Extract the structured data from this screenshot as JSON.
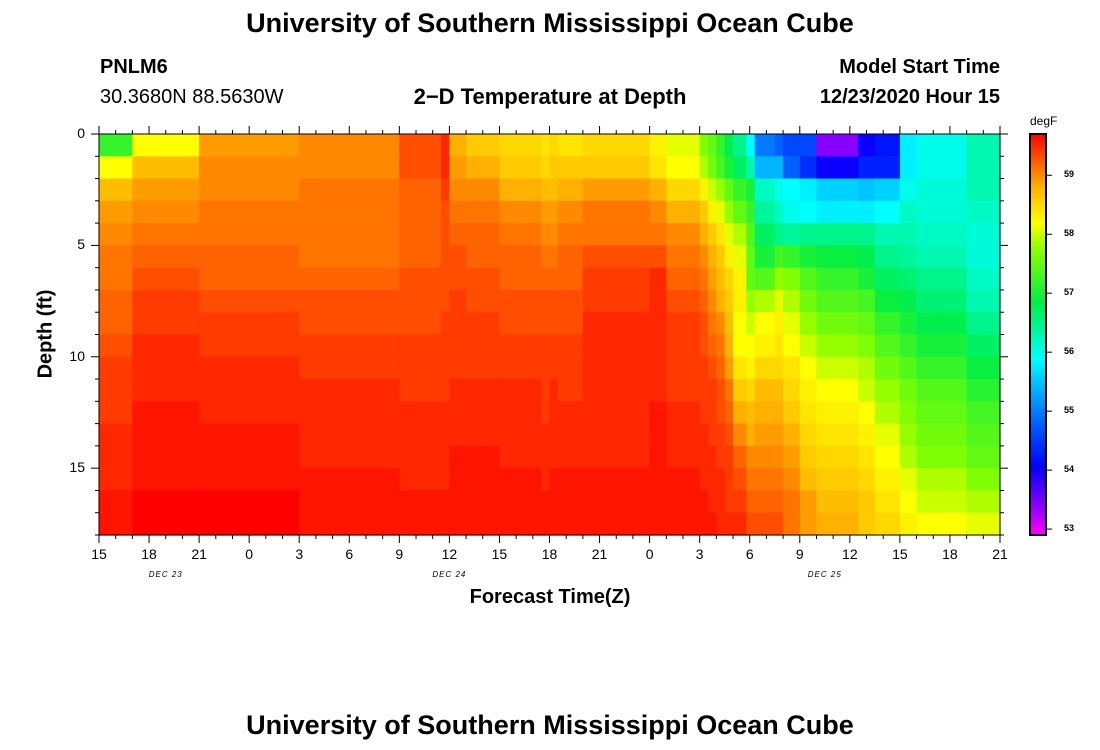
{
  "title_top": "University of Southern Mississippi Ocean Cube",
  "title_bottom": "University of Southern Mississippi Ocean Cube",
  "station": {
    "id": "PNLM6",
    "coords": "30.3680N 88.5630W"
  },
  "model": {
    "label": "Model Start Time",
    "time": "12/23/2020 Hour 15"
  },
  "chart_data": {
    "type": "heatmap",
    "title": "2−D Temperature at Depth",
    "xlabel": "Forecast Time(Z)",
    "ylabel": "Depth (ft)",
    "x_range_hours": [
      0,
      54
    ],
    "y_range_ft": [
      0,
      18
    ],
    "x_ticks": [
      {
        "hour": 0,
        "label": "15"
      },
      {
        "hour": 3,
        "label": "18"
      },
      {
        "hour": 6,
        "label": "21"
      },
      {
        "hour": 9,
        "label": "0"
      },
      {
        "hour": 12,
        "label": "3"
      },
      {
        "hour": 15,
        "label": "6"
      },
      {
        "hour": 18,
        "label": "9"
      },
      {
        "hour": 21,
        "label": "12"
      },
      {
        "hour": 24,
        "label": "15"
      },
      {
        "hour": 27,
        "label": "18"
      },
      {
        "hour": 30,
        "label": "21"
      },
      {
        "hour": 33,
        "label": "0"
      },
      {
        "hour": 36,
        "label": "3"
      },
      {
        "hour": 39,
        "label": "6"
      },
      {
        "hour": 42,
        "label": "9"
      },
      {
        "hour": 45,
        "label": "12"
      },
      {
        "hour": 48,
        "label": "15"
      },
      {
        "hour": 51,
        "label": "18"
      },
      {
        "hour": 54,
        "label": "21"
      }
    ],
    "y_ticks": [
      {
        "depth": 0,
        "label": "0"
      },
      {
        "depth": 5,
        "label": "5"
      },
      {
        "depth": 10,
        "label": "10"
      },
      {
        "depth": 15,
        "label": "15"
      }
    ],
    "date_labels": [
      {
        "hour": 4,
        "label": "DEC 23"
      },
      {
        "hour": 21,
        "label": "DEC 24"
      },
      {
        "hour": 43.5,
        "label": "DEC 25"
      }
    ],
    "colorbar": {
      "unit": "degF",
      "min": 52.9,
      "max": 59.7,
      "ticks": [
        "59",
        "58",
        "57",
        "56",
        "55",
        "54",
        "53"
      ],
      "tick_values": [
        59,
        58,
        57,
        56,
        55,
        54,
        53
      ]
    },
    "time_breakpoints_hours": [
      0,
      2,
      6,
      12,
      18,
      20.5,
      21,
      22,
      24,
      26.5,
      27,
      27.5,
      29,
      33,
      34,
      36,
      36.5,
      37,
      37.5,
      38,
      38.8,
      39.3,
      40.5,
      41,
      42,
      43,
      45.5,
      46.5,
      48,
      49,
      52,
      54
    ],
    "depth_breakpoints_ft": [
      0,
      1,
      2,
      3,
      4,
      5,
      6,
      7,
      8,
      9,
      10,
      11,
      12,
      13,
      14,
      15,
      16,
      17,
      18
    ],
    "temperature_degF": [
      [
        57.2,
        58.2,
        58.7,
        58.9,
        59.0,
        59.1,
        59.1,
        59.2,
        59.2,
        59.3,
        59.4,
        59.4,
        59.4,
        59.5,
        59.5,
        59.5,
        59.6,
        59.6,
        59.7
      ],
      [
        58.2,
        58.7,
        58.9,
        59.0,
        59.1,
        59.2,
        59.3,
        59.4,
        59.4,
        59.5,
        59.5,
        59.5,
        59.6,
        59.6,
        59.6,
        59.6,
        59.7,
        59.7,
        59.7
      ],
      [
        58.9,
        59.0,
        59.0,
        59.1,
        59.1,
        59.2,
        59.2,
        59.3,
        59.4,
        59.4,
        59.5,
        59.5,
        59.5,
        59.6,
        59.6,
        59.6,
        59.7,
        59.7,
        59.7
      ],
      [
        59.0,
        59.0,
        59.1,
        59.1,
        59.1,
        59.1,
        59.2,
        59.3,
        59.3,
        59.4,
        59.4,
        59.5,
        59.5,
        59.5,
        59.5,
        59.6,
        59.6,
        59.6,
        59.6
      ],
      [
        59.3,
        59.3,
        59.2,
        59.2,
        59.2,
        59.2,
        59.3,
        59.3,
        59.3,
        59.4,
        59.4,
        59.4,
        59.5,
        59.5,
        59.5,
        59.5,
        59.6,
        59.6,
        59.6
      ],
      [
        59.5,
        59.5,
        59.4,
        59.3,
        59.3,
        59.3,
        59.3,
        59.3,
        59.4,
        59.4,
        59.4,
        59.4,
        59.5,
        59.5,
        59.5,
        59.5,
        59.6,
        59.6,
        59.6
      ],
      [
        58.8,
        58.9,
        59.0,
        59.1,
        59.2,
        59.3,
        59.3,
        59.4,
        59.4,
        59.4,
        59.4,
        59.5,
        59.5,
        59.5,
        59.6,
        59.6,
        59.6,
        59.6,
        59.6
      ],
      [
        58.6,
        58.8,
        59.0,
        59.1,
        59.2,
        59.2,
        59.3,
        59.3,
        59.4,
        59.4,
        59.4,
        59.5,
        59.5,
        59.5,
        59.6,
        59.6,
        59.6,
        59.6,
        59.6
      ],
      [
        58.5,
        58.6,
        58.8,
        59.0,
        59.1,
        59.2,
        59.2,
        59.3,
        59.3,
        59.4,
        59.4,
        59.5,
        59.5,
        59.5,
        59.5,
        59.6,
        59.6,
        59.6,
        59.6
      ],
      [
        58.4,
        58.5,
        58.7,
        58.9,
        59.0,
        59.1,
        59.2,
        59.3,
        59.3,
        59.4,
        59.4,
        59.4,
        59.4,
        59.5,
        59.5,
        59.5,
        59.6,
        59.6,
        59.6
      ],
      [
        58.5,
        58.6,
        58.7,
        58.9,
        59.0,
        59.1,
        59.2,
        59.3,
        59.3,
        59.4,
        59.4,
        59.5,
        59.5,
        59.5,
        59.5,
        59.6,
        59.6,
        59.6,
        59.6
      ],
      [
        58.4,
        58.6,
        58.8,
        59.0,
        59.1,
        59.2,
        59.2,
        59.3,
        59.3,
        59.4,
        59.4,
        59.4,
        59.5,
        59.5,
        59.5,
        59.6,
        59.6,
        59.6,
        59.6
      ],
      [
        58.5,
        58.6,
        58.9,
        59.1,
        59.1,
        59.3,
        59.4,
        59.4,
        59.5,
        59.5,
        59.5,
        59.5,
        59.5,
        59.5,
        59.5,
        59.6,
        59.6,
        59.6,
        59.6
      ],
      [
        58.3,
        58.4,
        58.8,
        59.0,
        59.1,
        59.3,
        59.5,
        59.5,
        59.5,
        59.5,
        59.5,
        59.5,
        59.6,
        59.6,
        59.6,
        59.6,
        59.6,
        59.6,
        59.6
      ],
      [
        58.1,
        58.2,
        58.5,
        58.8,
        59.0,
        59.1,
        59.2,
        59.3,
        59.4,
        59.4,
        59.4,
        59.4,
        59.5,
        59.5,
        59.5,
        59.6,
        59.6,
        59.6,
        59.6
      ],
      [
        57.7,
        57.9,
        58.3,
        58.6,
        58.8,
        59.0,
        59.1,
        59.2,
        59.3,
        59.3,
        59.4,
        59.4,
        59.4,
        59.5,
        59.5,
        59.5,
        59.6,
        59.6,
        59.6
      ],
      [
        57.5,
        57.6,
        58.0,
        58.3,
        58.6,
        58.8,
        58.9,
        59.0,
        59.1,
        59.2,
        59.3,
        59.4,
        59.4,
        59.4,
        59.5,
        59.5,
        59.5,
        59.6,
        59.6
      ],
      [
        57.2,
        57.3,
        57.8,
        58.1,
        58.4,
        58.6,
        58.7,
        58.8,
        59.0,
        59.1,
        59.2,
        59.3,
        59.3,
        59.4,
        59.4,
        59.5,
        59.5,
        59.5,
        59.5
      ],
      [
        56.8,
        57.0,
        57.5,
        57.8,
        58.1,
        58.3,
        58.5,
        58.6,
        58.7,
        58.8,
        58.9,
        59.1,
        59.2,
        59.3,
        59.4,
        59.4,
        59.4,
        59.5,
        59.5
      ],
      [
        56.5,
        56.7,
        57.2,
        57.5,
        57.9,
        58.1,
        58.3,
        58.3,
        58.2,
        58.2,
        58.4,
        58.6,
        58.8,
        59.0,
        59.2,
        59.3,
        59.4,
        59.5,
        59.6
      ],
      [
        55.9,
        56.3,
        57.0,
        57.2,
        57.4,
        57.5,
        57.5,
        57.8,
        58.0,
        58.2,
        58.3,
        58.5,
        58.7,
        58.8,
        59.0,
        59.1,
        59.2,
        59.3,
        59.3
      ],
      [
        55.0,
        55.4,
        56.2,
        56.4,
        56.7,
        57.0,
        57.4,
        57.9,
        58.2,
        58.3,
        58.5,
        58.7,
        58.8,
        58.9,
        59.0,
        59.1,
        59.2,
        59.3,
        59.3
      ],
      [
        54.8,
        55.4,
        56.0,
        56.2,
        56.5,
        57.3,
        57.8,
        58.1,
        58.3,
        58.4,
        58.5,
        58.7,
        58.8,
        58.9,
        59.0,
        59.1,
        59.2,
        59.3,
        59.4
      ],
      [
        54.6,
        54.8,
        55.9,
        56.0,
        56.4,
        57.2,
        57.7,
        57.9,
        58.1,
        58.2,
        58.4,
        58.5,
        58.6,
        58.8,
        58.9,
        59.0,
        59.1,
        59.1,
        59.2
      ],
      [
        54.6,
        54.4,
        55.8,
        55.9,
        56.5,
        57.0,
        57.4,
        57.6,
        57.8,
        58.0,
        58.2,
        58.3,
        58.4,
        58.5,
        58.6,
        58.7,
        58.9,
        58.9,
        59.0
      ],
      [
        53.4,
        54.0,
        55.6,
        55.8,
        56.5,
        56.9,
        57.2,
        57.4,
        57.6,
        57.8,
        58.0,
        58.2,
        58.3,
        58.4,
        58.5,
        58.6,
        58.7,
        58.8,
        58.8
      ],
      [
        54.0,
        54.3,
        55.5,
        55.8,
        56.5,
        56.8,
        57.0,
        57.3,
        57.5,
        57.7,
        57.9,
        58.0,
        58.2,
        58.3,
        58.4,
        58.5,
        58.6,
        58.6,
        58.7
      ],
      [
        54.2,
        54.3,
        55.6,
        55.9,
        56.3,
        56.5,
        56.7,
        56.9,
        57.2,
        57.4,
        57.6,
        57.8,
        57.9,
        58.1,
        58.2,
        58.3,
        58.4,
        58.5,
        58.6
      ],
      [
        55.8,
        55.8,
        56.0,
        56.2,
        56.3,
        56.4,
        56.6,
        56.8,
        57.0,
        57.2,
        57.4,
        57.6,
        57.7,
        57.8,
        57.9,
        58.1,
        58.2,
        58.3,
        58.4
      ],
      [
        56.0,
        56.0,
        56.1,
        56.1,
        56.2,
        56.3,
        56.5,
        56.6,
        56.8,
        57.0,
        57.2,
        57.4,
        57.5,
        57.6,
        57.7,
        57.9,
        58.0,
        58.2,
        58.3
      ],
      [
        56.3,
        56.3,
        56.3,
        56.2,
        56.1,
        56.1,
        56.2,
        56.3,
        56.5,
        56.7,
        56.9,
        57.1,
        57.3,
        57.4,
        57.5,
        57.7,
        57.9,
        58.1,
        58.2
      ],
      [
        56.6,
        56.5,
        56.4,
        56.3,
        56.2,
        56.1,
        56.1,
        56.3,
        56.5,
        56.7,
        56.9,
        57.1,
        57.3,
        57.4,
        57.5,
        57.7,
        57.8,
        58.0,
        58.2
      ]
    ]
  }
}
